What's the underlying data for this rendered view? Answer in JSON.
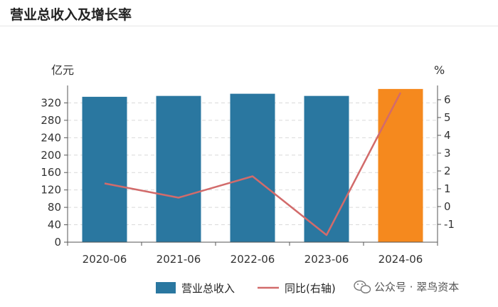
{
  "header": {
    "title": "营业总收入及增长率"
  },
  "watermark": {
    "text": "公众号 · 翠鸟资本",
    "icon": "wechat-icon"
  },
  "colors": {
    "bar": "#2a77a0",
    "bar_highlight": "#f5891e",
    "line": "#d26b6b",
    "grid": "#d9d9d9",
    "axis": "#555555"
  },
  "chart_data": {
    "type": "bar",
    "categories": [
      "2020-06",
      "2021-06",
      "2022-06",
      "2023-06",
      "2024-06"
    ],
    "series": [
      {
        "name": "营业总收入",
        "type": "bar",
        "axis": "left",
        "values": [
          334,
          336,
          341,
          336,
          352
        ],
        "highlight_index": 4
      },
      {
        "name": "同比(右轴)",
        "type": "line",
        "axis": "right",
        "values": [
          1.3,
          0.5,
          1.7,
          -1.6,
          6.4
        ]
      }
    ],
    "left_axis": {
      "unit": "亿元",
      "ticks": [
        0,
        40,
        80,
        120,
        160,
        200,
        240,
        280,
        320
      ],
      "range": [
        0,
        360
      ]
    },
    "right_axis": {
      "unit": "%",
      "ticks": [
        -1,
        0,
        1,
        2,
        3,
        4,
        5,
        6
      ],
      "range": [
        -2,
        6.8
      ]
    },
    "grid": true,
    "legend_position": "bottom"
  }
}
